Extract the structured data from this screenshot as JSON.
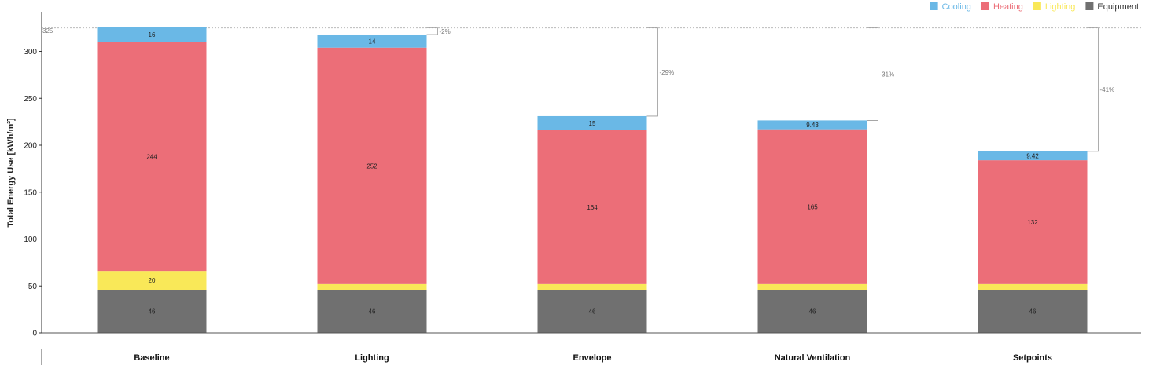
{
  "chart_data": {
    "type": "bar",
    "stacked": true,
    "categories": [
      "Baseline",
      "Lighting",
      "Envelope",
      "Natural Ventilation",
      "Setpoints"
    ],
    "series": [
      {
        "name": "Equipment",
        "color": "#707070",
        "values": [
          46,
          46,
          46,
          46,
          46
        ],
        "labels": [
          "46",
          "46",
          "46",
          "46",
          "46"
        ]
      },
      {
        "name": "Lighting",
        "color": "#f9e858",
        "values": [
          20,
          6,
          6,
          6,
          6
        ],
        "labels": [
          "20",
          "",
          "",
          "",
          ""
        ]
      },
      {
        "name": "Heating",
        "color": "#ec6e78",
        "values": [
          244,
          252,
          164,
          165,
          132
        ],
        "labels": [
          "244",
          "252",
          "164",
          "165",
          "132"
        ]
      },
      {
        "name": "Cooling",
        "color": "#6ab8e6",
        "values": [
          16,
          14,
          15,
          9.43,
          9.42
        ],
        "labels": [
          "16",
          "14",
          "15",
          "9.43",
          "9.42"
        ]
      }
    ],
    "legend_order": [
      "Cooling",
      "Heating",
      "Lighting",
      "Equipment"
    ],
    "legend_placement": "top-right",
    "ylabel": "Total Energy Use [kWh/m²]",
    "xlabel": "",
    "ylim": [
      0,
      340
    ],
    "yticks": [
      0,
      50,
      100,
      150,
      200,
      250,
      300
    ],
    "reference_line": {
      "value": 325,
      "label": "325"
    },
    "annotations": [
      {
        "category": "Lighting",
        "label": "-2%"
      },
      {
        "category": "Envelope",
        "label": "-29%"
      },
      {
        "category": "Natural Ventilation",
        "label": "-31%"
      },
      {
        "category": "Setpoints",
        "label": "-41%"
      }
    ],
    "grid": false
  }
}
